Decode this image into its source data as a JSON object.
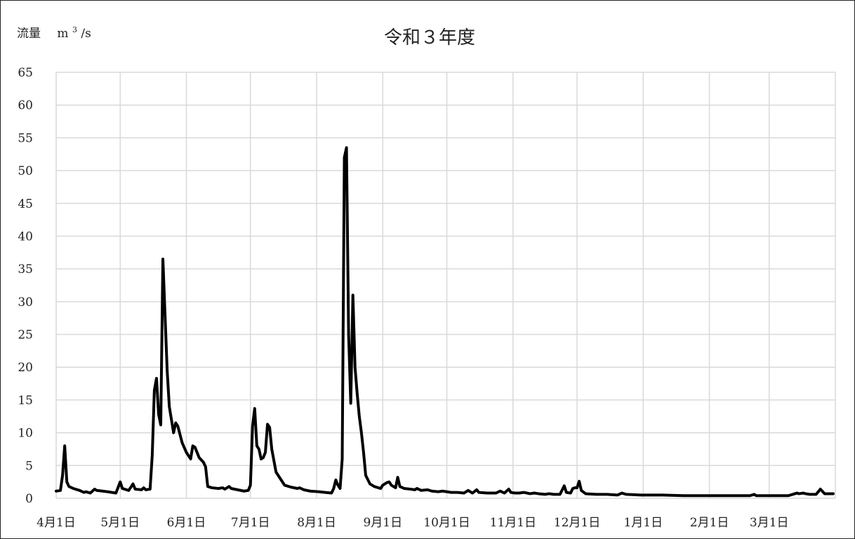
{
  "chart_data": {
    "type": "line",
    "title": "令和３年度",
    "ylabel_prefix": "流量",
    "ylabel_unit_base": "m",
    "ylabel_unit_sup": "3",
    "ylabel_unit_suffix": "/s",
    "xlabel": "",
    "ylim": [
      0,
      65
    ],
    "yticks": [
      0,
      5,
      10,
      15,
      20,
      25,
      30,
      35,
      40,
      45,
      50,
      55,
      60,
      65
    ],
    "xlim": [
      "2021-04-01",
      "2022-03-31"
    ],
    "xticks": [
      {
        "date": "2021-04-01",
        "label": "4月1日"
      },
      {
        "date": "2021-05-01",
        "label": "5月1日"
      },
      {
        "date": "2021-06-01",
        "label": "6月1日"
      },
      {
        "date": "2021-07-01",
        "label": "7月1日"
      },
      {
        "date": "2021-08-01",
        "label": "8月1日"
      },
      {
        "date": "2021-09-01",
        "label": "9月1日"
      },
      {
        "date": "2021-10-01",
        "label": "10月1日"
      },
      {
        "date": "2021-11-01",
        "label": "11月1日"
      },
      {
        "date": "2021-12-01",
        "label": "12月1日"
      },
      {
        "date": "2022-01-01",
        "label": "1月1日"
      },
      {
        "date": "2022-02-01",
        "label": "2月1日"
      },
      {
        "date": "2022-03-01",
        "label": "3月1日"
      }
    ],
    "grid": true,
    "series": [
      {
        "color": "#000000",
        "points": [
          [
            "2021-04-01",
            1.1
          ],
          [
            "2021-04-03",
            1.2
          ],
          [
            "2021-04-04",
            3.5
          ],
          [
            "2021-04-05",
            8.0
          ],
          [
            "2021-04-06",
            2.5
          ],
          [
            "2021-04-07",
            1.8
          ],
          [
            "2021-04-09",
            1.5
          ],
          [
            "2021-04-12",
            1.2
          ],
          [
            "2021-04-14",
            0.9
          ],
          [
            "2021-04-15",
            1.0
          ],
          [
            "2021-04-17",
            0.8
          ],
          [
            "2021-04-19",
            1.4
          ],
          [
            "2021-04-20",
            1.2
          ],
          [
            "2021-04-25",
            1.0
          ],
          [
            "2021-04-29",
            0.8
          ],
          [
            "2021-05-01",
            2.5
          ],
          [
            "2021-05-02",
            1.5
          ],
          [
            "2021-05-05",
            1.2
          ],
          [
            "2021-05-07",
            2.2
          ],
          [
            "2021-05-08",
            1.4
          ],
          [
            "2021-05-11",
            1.3
          ],
          [
            "2021-05-12",
            1.6
          ],
          [
            "2021-05-13",
            1.3
          ],
          [
            "2021-05-15",
            1.4
          ],
          [
            "2021-05-16",
            6.5
          ],
          [
            "2021-05-17",
            16.5
          ],
          [
            "2021-05-18",
            18.3
          ],
          [
            "2021-05-19",
            12.8
          ],
          [
            "2021-05-20",
            11.2
          ],
          [
            "2021-05-21",
            36.5
          ],
          [
            "2021-05-22",
            28.0
          ],
          [
            "2021-05-23",
            19.5
          ],
          [
            "2021-05-24",
            14.0
          ],
          [
            "2021-05-25",
            12.0
          ],
          [
            "2021-05-26",
            10.0
          ],
          [
            "2021-05-27",
            11.5
          ],
          [
            "2021-05-28",
            11.0
          ],
          [
            "2021-05-30",
            8.5
          ],
          [
            "2021-06-01",
            7.0
          ],
          [
            "2021-06-03",
            6.0
          ],
          [
            "2021-06-04",
            8.0
          ],
          [
            "2021-06-05",
            7.8
          ],
          [
            "2021-06-07",
            6.2
          ],
          [
            "2021-06-09",
            5.5
          ],
          [
            "2021-06-10",
            4.8
          ],
          [
            "2021-06-11",
            1.8
          ],
          [
            "2021-06-13",
            1.6
          ],
          [
            "2021-06-16",
            1.5
          ],
          [
            "2021-06-18",
            1.6
          ],
          [
            "2021-06-19",
            1.4
          ],
          [
            "2021-06-21",
            1.8
          ],
          [
            "2021-06-22",
            1.5
          ],
          [
            "2021-06-25",
            1.3
          ],
          [
            "2021-06-28",
            1.1
          ],
          [
            "2021-06-30",
            1.2
          ],
          [
            "2021-07-01",
            2.0
          ],
          [
            "2021-07-02",
            11.0
          ],
          [
            "2021-07-03",
            13.7
          ],
          [
            "2021-07-04",
            8.0
          ],
          [
            "2021-07-05",
            7.5
          ],
          [
            "2021-07-06",
            6.0
          ],
          [
            "2021-07-07",
            6.2
          ],
          [
            "2021-07-08",
            7.0
          ],
          [
            "2021-07-09",
            11.3
          ],
          [
            "2021-07-10",
            10.8
          ],
          [
            "2021-07-11",
            7.5
          ],
          [
            "2021-07-13",
            4.0
          ],
          [
            "2021-07-15",
            3.0
          ],
          [
            "2021-07-17",
            2.0
          ],
          [
            "2021-07-20",
            1.7
          ],
          [
            "2021-07-23",
            1.5
          ],
          [
            "2021-07-24",
            1.6
          ],
          [
            "2021-07-26",
            1.3
          ],
          [
            "2021-07-29",
            1.1
          ],
          [
            "2021-08-02",
            1.0
          ],
          [
            "2021-08-05",
            0.9
          ],
          [
            "2021-08-08",
            0.8
          ],
          [
            "2021-08-09",
            1.5
          ],
          [
            "2021-08-10",
            2.8
          ],
          [
            "2021-08-11",
            2.0
          ],
          [
            "2021-08-12",
            1.5
          ],
          [
            "2021-08-13",
            6.0
          ],
          [
            "2021-08-14",
            52.0
          ],
          [
            "2021-08-15",
            53.5
          ],
          [
            "2021-08-16",
            25.0
          ],
          [
            "2021-08-17",
            14.5
          ],
          [
            "2021-08-18",
            31.0
          ],
          [
            "2021-08-19",
            20.0
          ],
          [
            "2021-08-20",
            16.0
          ],
          [
            "2021-08-21",
            12.5
          ],
          [
            "2021-08-22",
            10.0
          ],
          [
            "2021-08-23",
            7.0
          ],
          [
            "2021-08-24",
            3.5
          ],
          [
            "2021-08-26",
            2.2
          ],
          [
            "2021-08-28",
            1.8
          ],
          [
            "2021-08-31",
            1.5
          ],
          [
            "2021-09-01",
            2.0
          ],
          [
            "2021-09-02",
            2.2
          ],
          [
            "2021-09-03",
            2.4
          ],
          [
            "2021-09-04",
            2.5
          ],
          [
            "2021-09-05",
            2.0
          ],
          [
            "2021-09-07",
            1.6
          ],
          [
            "2021-09-08",
            3.2
          ],
          [
            "2021-09-09",
            1.8
          ],
          [
            "2021-09-11",
            1.5
          ],
          [
            "2021-09-14",
            1.4
          ],
          [
            "2021-09-16",
            1.3
          ],
          [
            "2021-09-17",
            1.5
          ],
          [
            "2021-09-19",
            1.2
          ],
          [
            "2021-09-22",
            1.3
          ],
          [
            "2021-09-24",
            1.1
          ],
          [
            "2021-09-27",
            1.0
          ],
          [
            "2021-09-29",
            1.1
          ],
          [
            "2021-10-01",
            1.0
          ],
          [
            "2021-10-03",
            0.9
          ],
          [
            "2021-10-06",
            0.9
          ],
          [
            "2021-10-09",
            0.8
          ],
          [
            "2021-10-11",
            1.2
          ],
          [
            "2021-10-13",
            0.8
          ],
          [
            "2021-10-15",
            1.3
          ],
          [
            "2021-10-16",
            0.9
          ],
          [
            "2021-10-20",
            0.8
          ],
          [
            "2021-10-24",
            0.8
          ],
          [
            "2021-10-26",
            1.1
          ],
          [
            "2021-10-28",
            0.8
          ],
          [
            "2021-10-30",
            1.4
          ],
          [
            "2021-10-31",
            0.9
          ],
          [
            "2021-11-02",
            0.8
          ],
          [
            "2021-11-04",
            0.8
          ],
          [
            "2021-11-06",
            0.9
          ],
          [
            "2021-11-09",
            0.7
          ],
          [
            "2021-11-11",
            0.8
          ],
          [
            "2021-11-13",
            0.7
          ],
          [
            "2021-11-16",
            0.6
          ],
          [
            "2021-11-18",
            0.7
          ],
          [
            "2021-11-20",
            0.6
          ],
          [
            "2021-11-23",
            0.6
          ],
          [
            "2021-11-25",
            1.9
          ],
          [
            "2021-11-26",
            0.9
          ],
          [
            "2021-11-28",
            0.8
          ],
          [
            "2021-11-29",
            1.5
          ],
          [
            "2021-11-30",
            1.6
          ],
          [
            "2021-12-01",
            1.6
          ],
          [
            "2021-12-02",
            2.6
          ],
          [
            "2021-12-03",
            1.2
          ],
          [
            "2021-12-05",
            0.7
          ],
          [
            "2021-12-10",
            0.6
          ],
          [
            "2021-12-15",
            0.6
          ],
          [
            "2021-12-20",
            0.5
          ],
          [
            "2021-12-22",
            0.8
          ],
          [
            "2021-12-24",
            0.6
          ],
          [
            "2021-12-31",
            0.5
          ],
          [
            "2022-01-10",
            0.5
          ],
          [
            "2022-01-20",
            0.4
          ],
          [
            "2022-02-01",
            0.4
          ],
          [
            "2022-02-10",
            0.4
          ],
          [
            "2022-02-20",
            0.4
          ],
          [
            "2022-02-22",
            0.6
          ],
          [
            "2022-02-23",
            0.4
          ],
          [
            "2022-03-01",
            0.4
          ],
          [
            "2022-03-10",
            0.4
          ],
          [
            "2022-03-12",
            0.6
          ],
          [
            "2022-03-14",
            0.8
          ],
          [
            "2022-03-15",
            0.7
          ],
          [
            "2022-03-17",
            0.8
          ],
          [
            "2022-03-18",
            0.7
          ],
          [
            "2022-03-20",
            0.6
          ],
          [
            "2022-03-23",
            0.6
          ],
          [
            "2022-03-25",
            1.4
          ],
          [
            "2022-03-27",
            0.7
          ],
          [
            "2022-03-31",
            0.7
          ]
        ]
      }
    ]
  }
}
